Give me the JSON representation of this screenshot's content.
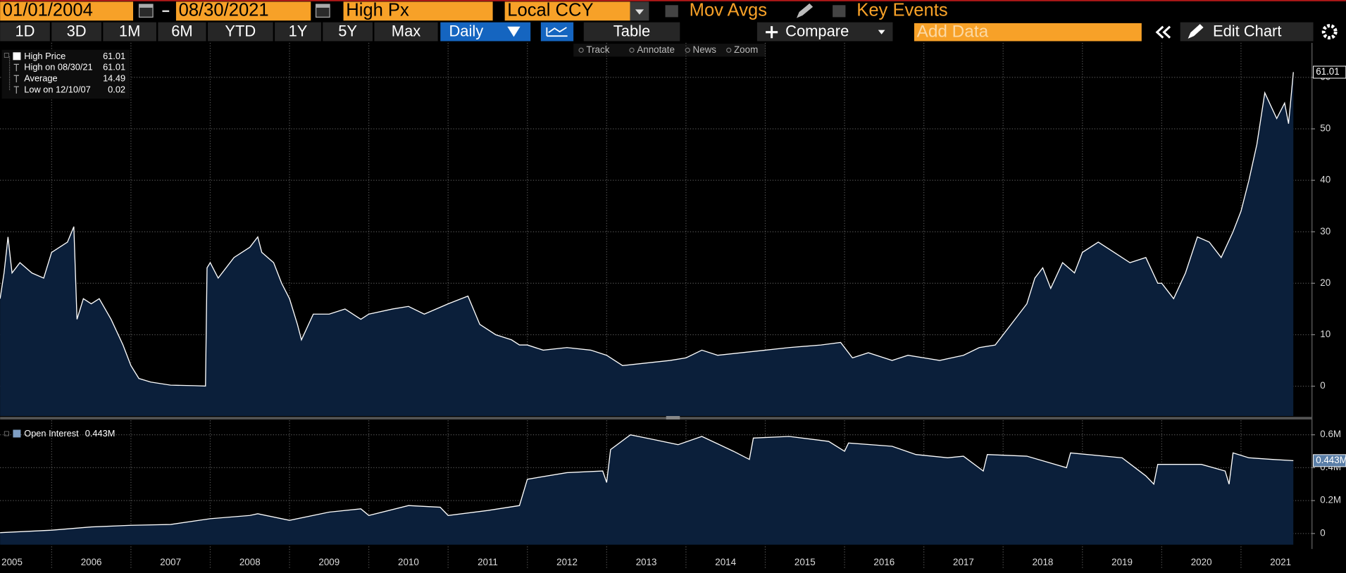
{
  "toolbar": {
    "start_date": "01/01/2004",
    "end_date": "08/30/2021",
    "field": "High Px",
    "currency": "Local CCY",
    "mov_avgs": "Mov Avgs",
    "key_events": "Key Events",
    "periods": [
      "1D",
      "3D",
      "1M",
      "6M",
      "YTD",
      "1Y",
      "5Y",
      "Max"
    ],
    "frequency": "Daily",
    "table": "Table",
    "compare": "Compare",
    "add_data": "Add Data",
    "edit_chart": "Edit Chart",
    "tools": [
      "Track",
      "Annotate",
      "News",
      "Zoom"
    ]
  },
  "chart_data": [
    {
      "type": "area",
      "legend": [
        {
          "label": "High Price",
          "value": 61.01
        },
        {
          "label": "High on 08/30/21",
          "value": 61.01
        },
        {
          "label": "Average",
          "value": 14.49
        },
        {
          "label": "Low on 12/10/07",
          "value": 0.02
        }
      ],
      "x": [
        2005.35,
        2005.4,
        2005.45,
        2005.5,
        2005.6,
        2005.75,
        2005.9,
        2006.0,
        2006.1,
        2006.2,
        2006.28,
        2006.32,
        2006.4,
        2006.5,
        2006.6,
        2006.75,
        2006.9,
        2007.0,
        2007.1,
        2007.25,
        2007.5,
        2007.8,
        2007.94,
        2007.96,
        2008.0,
        2008.1,
        2008.3,
        2008.5,
        2008.6,
        2008.65,
        2008.8,
        2008.9,
        2009.0,
        2009.1,
        2009.15,
        2009.3,
        2009.5,
        2009.7,
        2009.9,
        2010.0,
        2010.3,
        2010.5,
        2010.7,
        2011.0,
        2011.25,
        2011.4,
        2011.6,
        2011.8,
        2011.9,
        2012.0,
        2012.2,
        2012.5,
        2012.8,
        2013.0,
        2013.2,
        2013.5,
        2013.8,
        2014.0,
        2014.2,
        2014.4,
        2014.7,
        2015.0,
        2015.3,
        2015.7,
        2015.95,
        2016.1,
        2016.3,
        2016.6,
        2016.8,
        2017.0,
        2017.2,
        2017.5,
        2017.7,
        2017.9,
        2018.1,
        2018.3,
        2018.4,
        2018.5,
        2018.6,
        2018.75,
        2018.9,
        2019.0,
        2019.2,
        2019.4,
        2019.6,
        2019.8,
        2019.95,
        2020.0,
        2020.15,
        2020.3,
        2020.45,
        2020.6,
        2020.75,
        2020.9,
        2021.0,
        2021.1,
        2021.2,
        2021.3,
        2021.45,
        2021.55,
        2021.6,
        2021.66
      ],
      "series": [
        {
          "name": "High Price",
          "color": "#ffffff",
          "fill": "#0b1f3a",
          "values": [
            17,
            22,
            29,
            22,
            24,
            22,
            21,
            26,
            27,
            28,
            31,
            13,
            17,
            16,
            17,
            13,
            8,
            4,
            1.5,
            0.8,
            0.2,
            0.1,
            0.02,
            23,
            24,
            21,
            25,
            27,
            29,
            26,
            24,
            20,
            17,
            12,
            9,
            14,
            14,
            15,
            13,
            14,
            15,
            15.5,
            14,
            16,
            17.5,
            12,
            10,
            9,
            8,
            8,
            7,
            7.5,
            7,
            6,
            4,
            4.5,
            5,
            5.5,
            7,
            6,
            6.5,
            7,
            7.5,
            8,
            8.5,
            5.5,
            6.5,
            5,
            6,
            5.5,
            5,
            6,
            7.5,
            8,
            12,
            16,
            21,
            23,
            19,
            24,
            22,
            26,
            28,
            26,
            24,
            25,
            20,
            20,
            17,
            22,
            29,
            28,
            25,
            30,
            34,
            40,
            47,
            57,
            52,
            55,
            51,
            61.01
          ]
        }
      ],
      "xlim": [
        2005.35,
        2021.89
      ],
      "ylim": [
        -5.8,
        66.7
      ],
      "yticks": [
        0,
        10,
        20,
        30,
        40,
        50,
        60
      ],
      "grid": true
    },
    {
      "type": "area",
      "x": [
        2005.35,
        2006.0,
        2006.5,
        2007.0,
        2007.5,
        2008.0,
        2008.5,
        2008.6,
        2009.0,
        2009.5,
        2009.9,
        2010.0,
        2010.5,
        2010.9,
        2011.0,
        2011.5,
        2011.9,
        2012.0,
        2012.5,
        2012.95,
        2013.0,
        2013.05,
        2013.3,
        2013.6,
        2013.9,
        2014.2,
        2014.6,
        2014.8,
        2014.85,
        2015.3,
        2015.8,
        2016.0,
        2016.05,
        2016.6,
        2016.9,
        2017.3,
        2017.5,
        2017.75,
        2017.8,
        2018.3,
        2018.8,
        2018.85,
        2019.5,
        2019.8,
        2019.9,
        2019.95,
        2020.5,
        2020.8,
        2020.85,
        2020.9,
        2021.1,
        2021.4,
        2021.66
      ],
      "series": [
        {
          "name": "Open Interest",
          "color": "#ffffff",
          "fill": "#0b1f3a",
          "last_value_label": "0.443M",
          "values": [
            0.005,
            0.02,
            0.04,
            0.05,
            0.055,
            0.09,
            0.11,
            0.12,
            0.08,
            0.13,
            0.15,
            0.11,
            0.17,
            0.16,
            0.11,
            0.14,
            0.17,
            0.33,
            0.37,
            0.38,
            0.31,
            0.51,
            0.6,
            0.57,
            0.54,
            0.59,
            0.5,
            0.45,
            0.58,
            0.59,
            0.56,
            0.5,
            0.55,
            0.53,
            0.48,
            0.46,
            0.47,
            0.38,
            0.48,
            0.47,
            0.4,
            0.49,
            0.46,
            0.35,
            0.3,
            0.42,
            0.42,
            0.38,
            0.3,
            0.49,
            0.46,
            0.45,
            0.443
          ]
        }
      ],
      "xlim": [
        2005.35,
        2021.89
      ],
      "ylim": [
        -0.068,
        0.688
      ],
      "yticks": [
        0,
        {
          "value": 0.2,
          "label": "0.2M"
        },
        {
          "value": 0.4,
          "label": "0.4M"
        },
        {
          "value": 0.6,
          "label": "0.6M"
        }
      ],
      "grid": true,
      "xgrid": [
        2006,
        2007,
        2008,
        2009,
        2010,
        2011,
        2012,
        2013,
        2014,
        2015,
        2016,
        2017,
        2018,
        2019,
        2020,
        2021
      ],
      "xticks": [
        {
          "value": 2005.5,
          "label": "2005"
        },
        {
          "value": 2006.5,
          "label": "2006"
        },
        {
          "value": 2007.5,
          "label": "2007"
        },
        {
          "value": 2008.5,
          "label": "2008"
        },
        {
          "value": 2009.5,
          "label": "2009"
        },
        {
          "value": 2010.5,
          "label": "2010"
        },
        {
          "value": 2011.5,
          "label": "2011"
        },
        {
          "value": 2012.5,
          "label": "2012"
        },
        {
          "value": 2013.5,
          "label": "2013"
        },
        {
          "value": 2014.5,
          "label": "2014"
        },
        {
          "value": 2015.5,
          "label": "2015"
        },
        {
          "value": 2016.5,
          "label": "2016"
        },
        {
          "value": 2017.5,
          "label": "2017"
        },
        {
          "value": 2018.5,
          "label": "2018"
        },
        {
          "value": 2019.5,
          "label": "2019"
        },
        {
          "value": 2020.5,
          "label": "2020"
        },
        {
          "value": 2021.5,
          "label": "2021"
        }
      ]
    }
  ]
}
